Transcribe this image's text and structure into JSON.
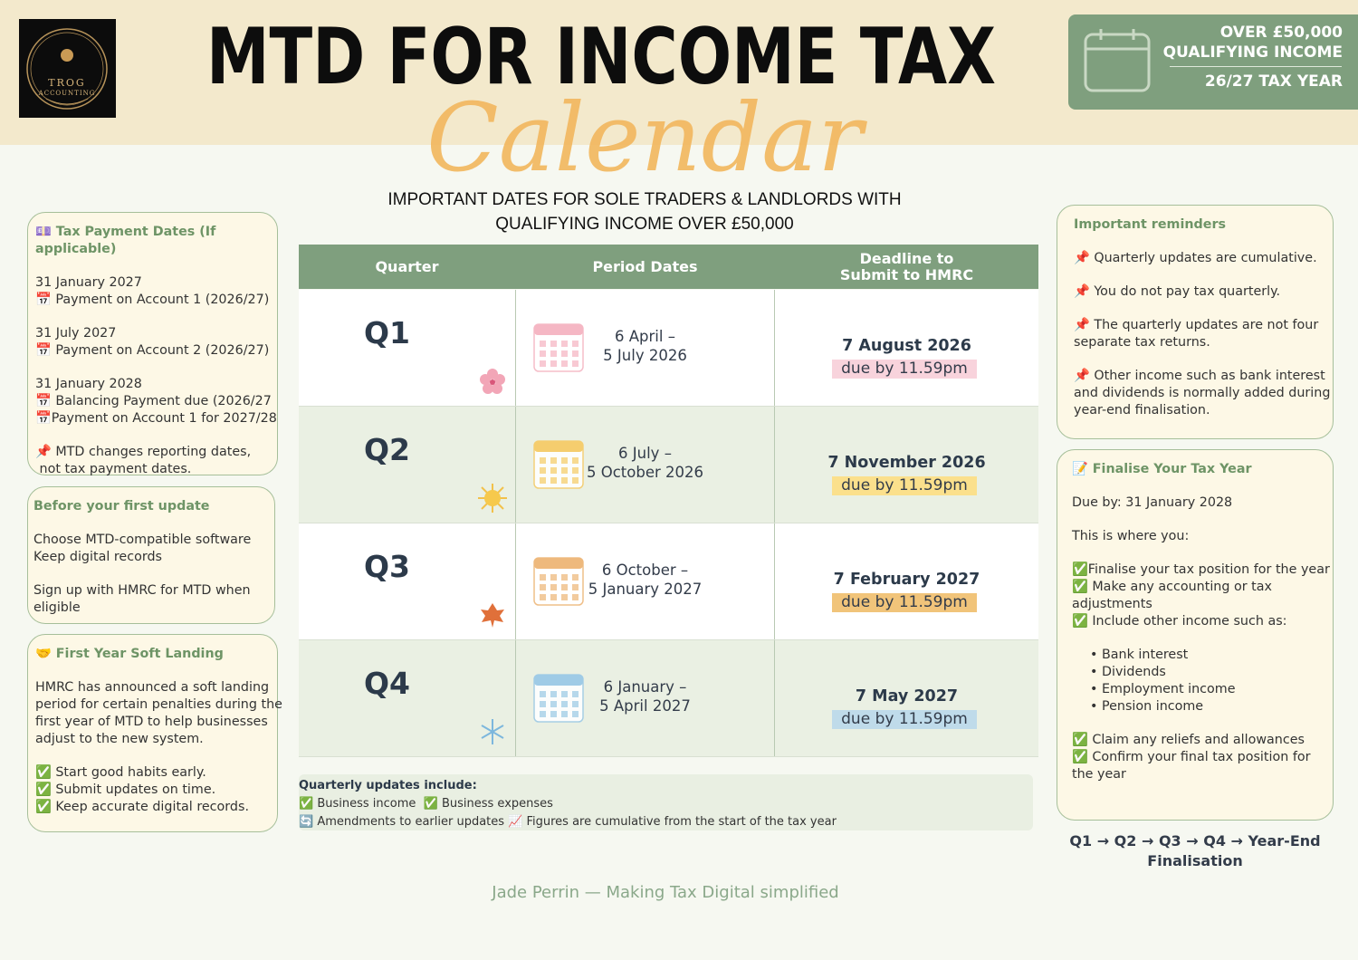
{
  "logo": {
    "name": "TROG",
    "tagline": "ACCOUNTING"
  },
  "header": {
    "title": "MTD FOR INCOME TAX",
    "script_title": "Calendar",
    "subtitle_lines": [
      "IMPORTANT DATES FOR SOLE TRADERS & LANDLORDS WITH",
      "QUALIFYING INCOME OVER £50,000"
    ]
  },
  "badge": {
    "lines": [
      "OVER £50,000",
      "QUALIFYING INCOME"
    ],
    "year": "26/27 TAX YEAR"
  },
  "left_panels": [
    {
      "title": "💷 Tax Payment Dates (If applicable)",
      "paragraphs": [
        [
          "31 January 2027",
          "📅 Payment on Account 1 (2026/27)"
        ],
        [
          "31 July 2027",
          "📅 Payment on Account 2 (2026/27)"
        ],
        [
          "31 January 2028",
          "📅 Balancing Payment due (2026/27",
          "📅Payment on Account 1 for 2027/28"
        ],
        [
          "📌 MTD changes reporting dates,",
          " not tax payment dates."
        ]
      ]
    },
    {
      "title": "Before your first update",
      "paragraphs": [
        [
          "Choose MTD-compatible software",
          "Keep digital records"
        ],
        [
          "Sign up with HMRC for MTD when",
          "eligible"
        ]
      ]
    },
    {
      "title": "🤝 First Year Soft Landing",
      "paragraphs": [
        [
          "HMRC has announced a soft landing",
          "period for certain penalties during the",
          "first year of MTD to help businesses",
          "adjust to the new system."
        ],
        [
          "✅ Start good habits early.",
          "✅ Submit updates on time.",
          "✅ Keep accurate digital records."
        ]
      ]
    }
  ],
  "table": {
    "headers": [
      "Quarter",
      "Period Dates",
      "Deadline to Submit to HMRC"
    ],
    "rows": [
      {
        "quarter": "Q1",
        "period": [
          "6 April –",
          "5 July 2026"
        ],
        "deadline": "7 August 2026",
        "due": "due by 11.59pm"
      },
      {
        "quarter": "Q2",
        "period": [
          "6 July –",
          "5 October 2026"
        ],
        "deadline": "7 November 2026",
        "due": "due by 11.59pm"
      },
      {
        "quarter": "Q3",
        "period": [
          "6 October –",
          "5 January 2027"
        ],
        "deadline": "7 February 2027",
        "due": "due by 11.59pm"
      },
      {
        "quarter": "Q4",
        "period": [
          "6 January –",
          "5 April 2027"
        ],
        "deadline": "7 May 2027",
        "due": "due by 11.59pm"
      }
    ]
  },
  "updates": {
    "title": "Quarterly updates include:",
    "lines": [
      "✅ Business income  ✅ Business expenses",
      "🔄 Amendments to earlier updates 📈 Figures are cumulative from the start of the tax year"
    ]
  },
  "right_panels": [
    {
      "title": "Important reminders",
      "paragraphs": [
        [
          "📌 Quarterly updates are cumulative."
        ],
        [
          "📌 You do not pay tax quarterly."
        ],
        [
          "📌 The quarterly updates are not four",
          "separate tax returns."
        ],
        [
          "📌 Other income such as bank interest",
          "and dividends is normally added during",
          "year-end finalisation."
        ]
      ]
    },
    {
      "title": "📝  Finalise Your Tax Year",
      "paragraphs": [
        [
          "Due by: 31 January 2028"
        ],
        [
          "This is where you:"
        ],
        [
          "✅Finalise your tax position for the year",
          "✅ Make any accounting or tax",
          "adjustments",
          "✅ Include other income such as:"
        ],
        [
          "• Bank interest",
          "• Dividends",
          "• Employment income",
          "• Pension income"
        ],
        [
          "✅ Claim any reliefs and allowances",
          "✅ Confirm your final tax position for",
          "the year"
        ]
      ]
    }
  ],
  "flow": [
    "Q1 → Q2 → Q3 → Q4 → Year-End",
    "Finalisation"
  ],
  "footer": "Jade Perrin — Making Tax Digital simplified"
}
